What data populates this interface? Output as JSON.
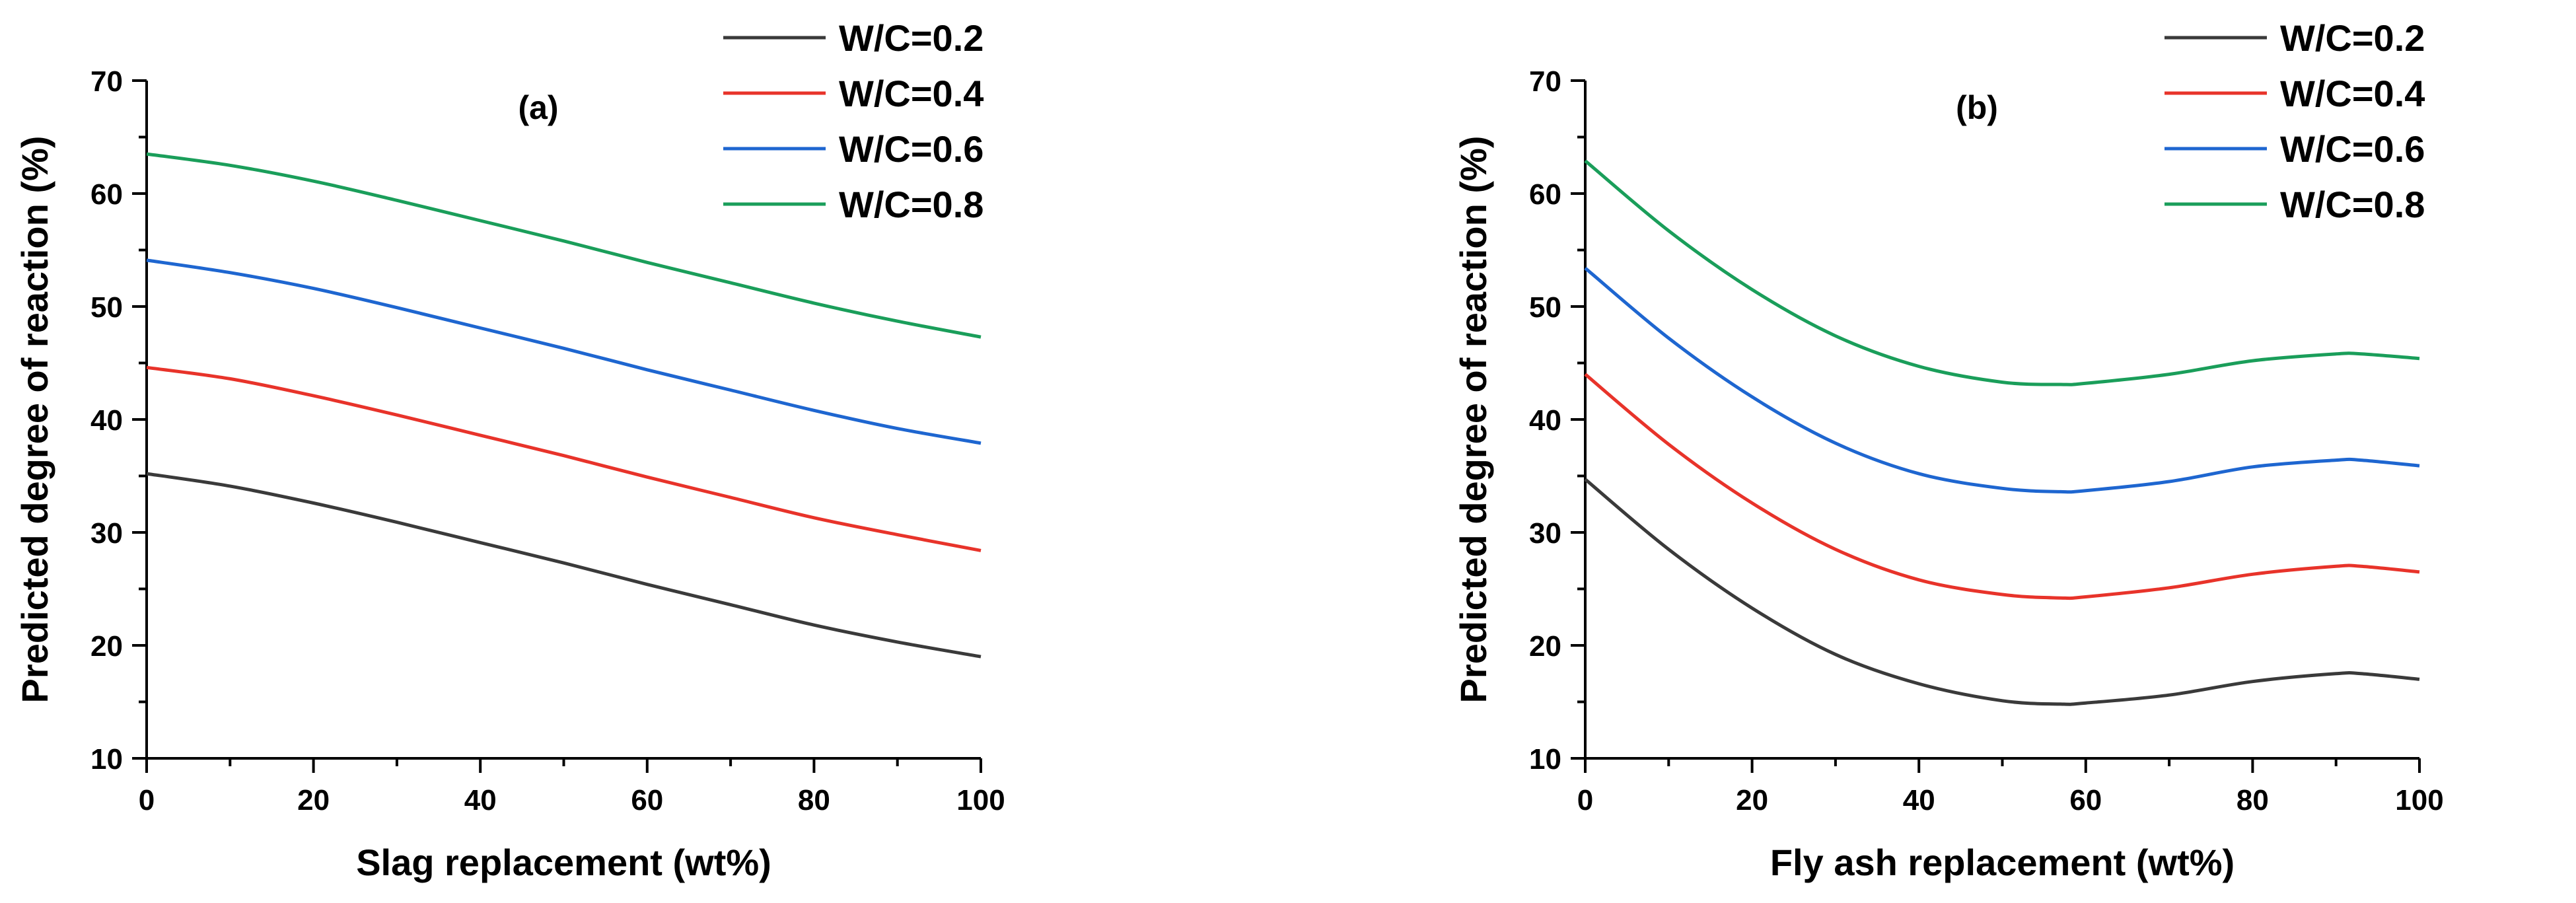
{
  "chart_data": [
    {
      "type": "line",
      "title": "(a)",
      "xlabel": "Slag replacement (wt%)",
      "ylabel": "Predicted degree of reaction (%)",
      "xlim": [
        0,
        100
      ],
      "ylim": [
        10,
        70
      ],
      "xticks": [
        0,
        20,
        40,
        60,
        80,
        100
      ],
      "yticks": [
        10,
        20,
        30,
        40,
        50,
        60,
        70
      ],
      "x": [
        0,
        10,
        20,
        30,
        40,
        50,
        60,
        70,
        80,
        90,
        100
      ],
      "series": [
        {
          "name": "W/C=0.2",
          "color": "#3a3a3a",
          "values": [
            35.2,
            34.1,
            32.6,
            30.9,
            29.1,
            27.3,
            25.4,
            23.6,
            21.8,
            20.3,
            19.0
          ]
        },
        {
          "name": "W/C=0.4",
          "color": "#e8332a",
          "values": [
            44.6,
            43.6,
            42.1,
            40.4,
            38.6,
            36.8,
            34.9,
            33.1,
            31.3,
            29.8,
            28.4
          ]
        },
        {
          "name": "W/C=0.6",
          "color": "#1e66d0",
          "values": [
            54.1,
            53.0,
            51.6,
            49.9,
            48.1,
            46.3,
            44.4,
            42.6,
            40.8,
            39.2,
            37.9
          ]
        },
        {
          "name": "W/C=0.8",
          "color": "#1a9e5a",
          "values": [
            63.5,
            62.5,
            61.1,
            59.4,
            57.6,
            55.8,
            53.9,
            52.1,
            50.3,
            48.7,
            47.3
          ]
        }
      ]
    },
    {
      "type": "line",
      "title": "(b)",
      "xlabel": "Fly ash replacement (wt%)",
      "ylabel": "Predicted degree of reaction (%)",
      "xlim": [
        0,
        100
      ],
      "ylim": [
        10,
        70
      ],
      "xticks": [
        0,
        20,
        40,
        60,
        80,
        100
      ],
      "yticks": [
        10,
        20,
        30,
        40,
        50,
        60,
        70
      ],
      "x": [
        0,
        10,
        20,
        30,
        40,
        50,
        57,
        60,
        70,
        80,
        90,
        93,
        100
      ],
      "series": [
        {
          "name": "W/C=0.2",
          "color": "#3a3a3a",
          "values": [
            34.7,
            28.5,
            23.3,
            19.2,
            16.6,
            15.1,
            14.8,
            14.9,
            15.6,
            16.8,
            17.5,
            17.5,
            17.0
          ]
        },
        {
          "name": "W/C=0.4",
          "color": "#e8332a",
          "values": [
            44.0,
            37.8,
            32.6,
            28.5,
            25.8,
            24.5,
            24.2,
            24.3,
            25.1,
            26.3,
            27.0,
            27.0,
            26.5
          ]
        },
        {
          "name": "W/C=0.6",
          "color": "#1e66d0",
          "values": [
            53.4,
            47.2,
            42.0,
            37.9,
            35.2,
            33.9,
            33.6,
            33.7,
            34.5,
            35.8,
            36.4,
            36.4,
            35.9
          ]
        },
        {
          "name": "W/C=0.8",
          "color": "#1a9e5a",
          "values": [
            62.9,
            56.7,
            51.5,
            47.4,
            44.7,
            43.3,
            43.1,
            43.2,
            44.0,
            45.2,
            45.8,
            45.8,
            45.4
          ]
        }
      ]
    }
  ]
}
